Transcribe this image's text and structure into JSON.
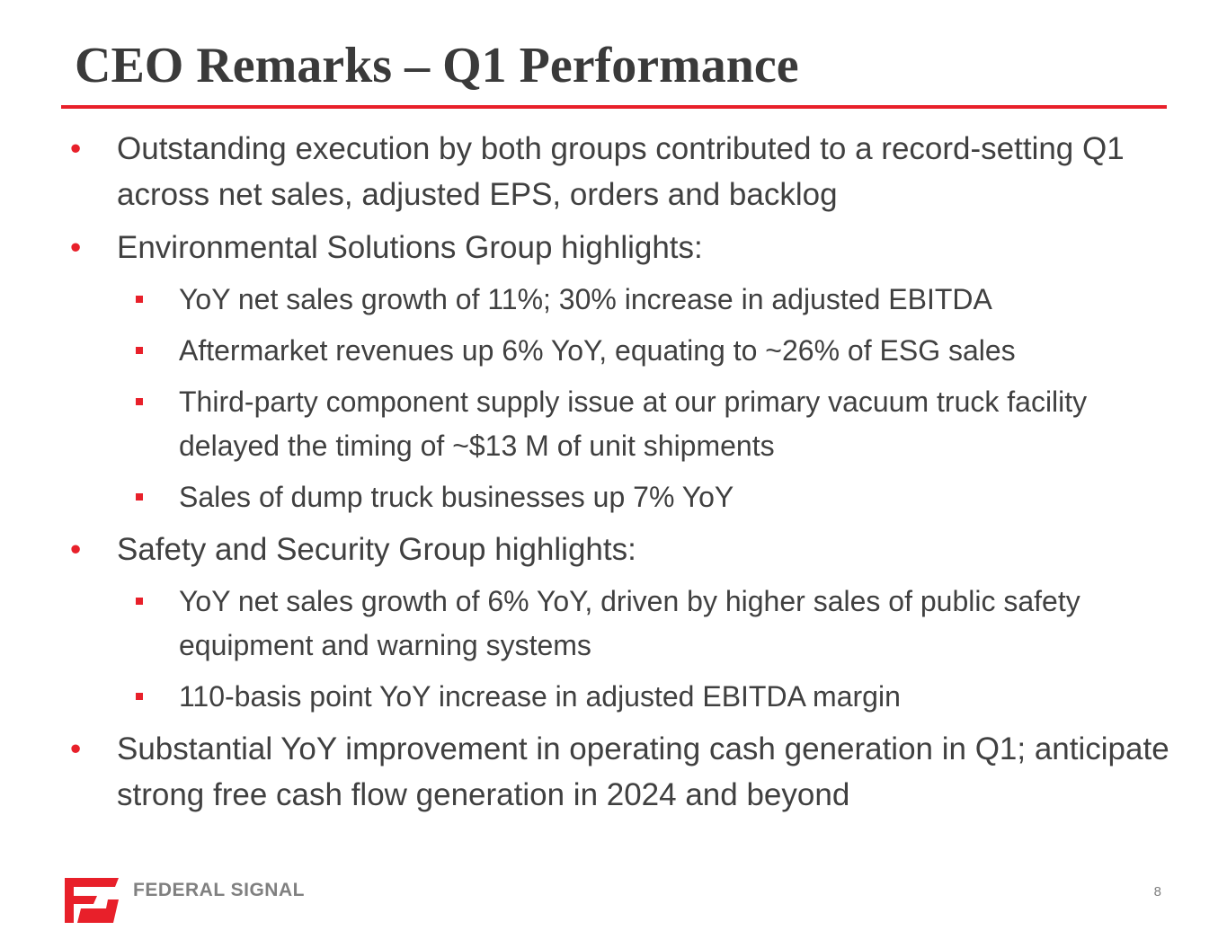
{
  "slide": {
    "title": "CEO Remarks – Q1 Performance",
    "page_number": "8",
    "accent_color": "#e8202a",
    "bullet_glyph": "•",
    "logo": {
      "icon": "federal-signal-logo-icon",
      "text": "FEDERAL SIGNAL"
    },
    "bullets": [
      {
        "text": "Outstanding execution by both groups contributed to a record-setting Q1 across net sales, adjusted EPS, orders and backlog",
        "sub": []
      },
      {
        "text": "Environmental Solutions Group highlights:",
        "sub": [
          "YoY net sales growth of 11%; 30% increase in adjusted EBITDA",
          "Aftermarket revenues up 6% YoY, equating to ~26% of ESG sales",
          "Third-party component supply issue at our primary vacuum truck facility delayed the timing of ~$13 M of unit shipments",
          "Sales of dump truck businesses up 7% YoY"
        ]
      },
      {
        "text": "Safety and Security Group highlights:",
        "sub": [
          "YoY net sales growth of 6% YoY, driven by higher sales of public safety equipment and warning systems",
          "110-basis point YoY increase in adjusted EBITDA margin"
        ]
      },
      {
        "text": "Substantial YoY improvement in operating cash generation in Q1; anticipate strong free cash flow generation in 2024 and beyond",
        "sub": []
      }
    ]
  }
}
